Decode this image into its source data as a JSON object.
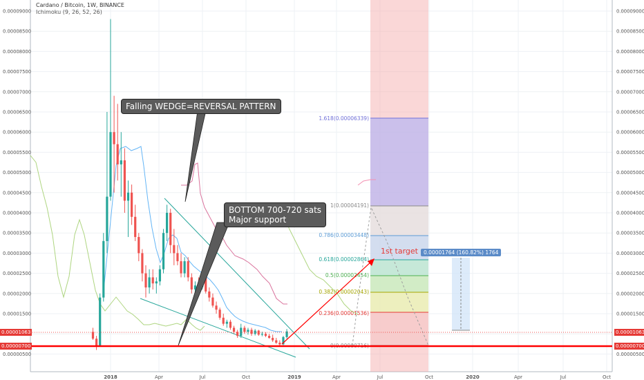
{
  "header": {
    "title": "Cardano / Bitcoin, 1W, BINANCE",
    "indicator": "Ichimoku (9, 26, 52, 26)"
  },
  "price_axis_labels": [
    "0.00009000",
    "0.00008500",
    "0.00008000",
    "0.00007500",
    "0.00007000",
    "0.00006500",
    "0.00006000",
    "0.00005500",
    "0.00005000",
    "0.00004500",
    "0.00004000",
    "0.00003500",
    "0.00003000",
    "0.00002500",
    "0.00002000",
    "0.00001500",
    "0.00001000",
    "0.00000500"
  ],
  "price_badges": {
    "current": "0.00001063",
    "support": "0.00000700"
  },
  "time_axis": [
    "2018",
    "Apr",
    "Jul",
    "Oct",
    "2019",
    "Apr",
    "Jul",
    "Oct",
    "2020",
    "Apr",
    "Jul",
    "Oct"
  ],
  "annotations": {
    "wedge": "Falling WEDGE=REVERSAL PATTERN",
    "bottom_line1": "BOTTOM 700-720 sats",
    "bottom_line2": "Major support",
    "target": "1st target",
    "position": "0.00001764 (160.82%) 1764"
  },
  "fib_levels": [
    {
      "label": "1.618(0.00006339)",
      "color": "#6f6fd8"
    },
    {
      "label": "1(0.00004191)",
      "color": "#888888"
    },
    {
      "label": "0.786(0.00003448)",
      "color": "#5b9bd5"
    },
    {
      "label": "0.618(0.00002864)",
      "color": "#26a69a"
    },
    {
      "label": "0.5(0.00002454)",
      "color": "#4caf50"
    },
    {
      "label": "0.382(0.00002043)",
      "color": "#a6a600"
    },
    {
      "label": "0.236(0.00001536)",
      "color": "#e53935"
    },
    {
      "label": "0(0.00000716)",
      "color": "#888888"
    }
  ],
  "colors": {
    "up": "#26a69a",
    "down": "#ef5350",
    "support": "#ff0000",
    "wedge": "#26a69a",
    "kijun": "#c2185b",
    "tenkan": "#64b5f6",
    "chikou": "#8bc34a"
  },
  "chart_data": {
    "type": "candlestick",
    "title": "Cardano / Bitcoin, 1W, BINANCE",
    "ylim": [
      3e-06,
      9.2e-05
    ],
    "support_level": 7e-06,
    "current_price": 1.063e-05,
    "candles": [
      {
        "x": "2017-11-27",
        "o": 1.05e-05,
        "h": 1.15e-05,
        "l": 8.5e-06,
        "c": 8.8e-06
      },
      {
        "x": "2017-12-04",
        "o": 8.8e-06,
        "h": 9.5e-06,
        "l": 6e-06,
        "c": 7e-06
      },
      {
        "x": "2017-12-11",
        "o": 7e-06,
        "h": 2e-05,
        "l": 6.8e-06,
        "c": 1.9e-05
      },
      {
        "x": "2017-12-18",
        "o": 1.9e-05,
        "h": 3.5e-05,
        "l": 1.8e-05,
        "c": 3.3e-05
      },
      {
        "x": "2017-12-25",
        "o": 3.3e-05,
        "h": 6.5e-05,
        "l": 3e-05,
        "c": 4.4e-05
      },
      {
        "x": "2018-01-01",
        "o": 4.4e-05,
        "h": 8.8e-05,
        "l": 4.3e-05,
        "c": 6e-05
      },
      {
        "x": "2018-01-08",
        "o": 6e-05,
        "h": 6.9e-05,
        "l": 4.5e-05,
        "c": 5.7e-05
      },
      {
        "x": "2018-01-15",
        "o": 5.7e-05,
        "h": 6.7e-05,
        "l": 4.8e-05,
        "c": 5.2e-05
      },
      {
        "x": "2018-01-22",
        "o": 5.2e-05,
        "h": 6e-05,
        "l": 4.4e-05,
        "c": 5.3e-05
      },
      {
        "x": "2018-01-29",
        "o": 5.3e-05,
        "h": 5.6e-05,
        "l": 4e-05,
        "c": 4.3e-05
      },
      {
        "x": "2018-02-05",
        "o": 4.3e-05,
        "h": 4.8e-05,
        "l": 3.4e-05,
        "c": 4.5e-05
      },
      {
        "x": "2018-02-12",
        "o": 4.5e-05,
        "h": 4.7e-05,
        "l": 3.7e-05,
        "c": 3.9e-05
      },
      {
        "x": "2018-02-19",
        "o": 3.9e-05,
        "h": 4.2e-05,
        "l": 3.3e-05,
        "c": 3.4e-05
      },
      {
        "x": "2018-02-26",
        "o": 3.4e-05,
        "h": 3.5e-05,
        "l": 2.8e-05,
        "c": 3e-05
      },
      {
        "x": "2018-03-05",
        "o": 3e-05,
        "h": 3.1e-05,
        "l": 2.3e-05,
        "c": 2.5e-05
      },
      {
        "x": "2018-03-12",
        "o": 2.5e-05,
        "h": 2.7e-05,
        "l": 1.9e-05,
        "c": 2.15e-05
      },
      {
        "x": "2018-03-19",
        "o": 2.15e-05,
        "h": 2.6e-05,
        "l": 2e-05,
        "c": 2.4e-05
      },
      {
        "x": "2018-03-26",
        "o": 2.4e-05,
        "h": 2.6e-05,
        "l": 2.1e-05,
        "c": 2.25e-05
      },
      {
        "x": "2018-04-02",
        "o": 2.25e-05,
        "h": 2.4e-05,
        "l": 2e-05,
        "c": 2.3e-05
      },
      {
        "x": "2018-04-09",
        "o": 2.3e-05,
        "h": 2.7e-05,
        "l": 2.2e-05,
        "c": 2.6e-05
      },
      {
        "x": "2018-04-16",
        "o": 2.6e-05,
        "h": 3.6e-05,
        "l": 2.5e-05,
        "c": 3.5e-05
      },
      {
        "x": "2018-04-23",
        "o": 3.5e-05,
        "h": 4.2e-05,
        "l": 3.3e-05,
        "c": 4e-05
      },
      {
        "x": "2018-04-30",
        "o": 4e-05,
        "h": 4.1e-05,
        "l": 3e-05,
        "c": 3.2e-05
      },
      {
        "x": "2018-05-07",
        "o": 3.2e-05,
        "h": 3.6e-05,
        "l": 2.7e-05,
        "c": 3e-05
      },
      {
        "x": "2018-05-14",
        "o": 3e-05,
        "h": 3.2e-05,
        "l": 2.7e-05,
        "c": 2.8e-05
      },
      {
        "x": "2018-05-21",
        "o": 2.8e-05,
        "h": 3e-05,
        "l": 2.4e-05,
        "c": 2.5e-05
      },
      {
        "x": "2018-05-28",
        "o": 2.5e-05,
        "h": 2.9e-05,
        "l": 2.4e-05,
        "c": 2.8e-05
      },
      {
        "x": "2018-06-04",
        "o": 2.8e-05,
        "h": 2.9e-05,
        "l": 2.3e-05,
        "c": 2.4e-05
      },
      {
        "x": "2018-06-11",
        "o": 2.4e-05,
        "h": 2.5e-05,
        "l": 2e-05,
        "c": 2.1e-05
      },
      {
        "x": "2018-06-18",
        "o": 2.1e-05,
        "h": 2.3e-05,
        "l": 1.95e-05,
        "c": 2.2e-05
      },
      {
        "x": "2018-06-25",
        "o": 2.2e-05,
        "h": 2.4e-05,
        "l": 2e-05,
        "c": 2.15e-05
      },
      {
        "x": "2018-07-02",
        "o": 2.15e-05,
        "h": 2.5e-05,
        "l": 2.1e-05,
        "c": 2.4e-05
      },
      {
        "x": "2018-07-09",
        "o": 2.4e-05,
        "h": 2.5e-05,
        "l": 2e-05,
        "c": 2.05e-05
      },
      {
        "x": "2018-07-16",
        "o": 2.05e-05,
        "h": 2.15e-05,
        "l": 1.8e-05,
        "c": 1.9e-05
      },
      {
        "x": "2018-07-23",
        "o": 1.9e-05,
        "h": 2e-05,
        "l": 1.65e-05,
        "c": 1.7e-05
      },
      {
        "x": "2018-07-30",
        "o": 1.7e-05,
        "h": 1.8e-05,
        "l": 1.5e-05,
        "c": 1.6e-05
      },
      {
        "x": "2018-08-06",
        "o": 1.6e-05,
        "h": 1.65e-05,
        "l": 1.35e-05,
        "c": 1.4e-05
      },
      {
        "x": "2018-08-13",
        "o": 1.4e-05,
        "h": 1.5e-05,
        "l": 1.2e-05,
        "c": 1.25e-05
      },
      {
        "x": "2018-08-20",
        "o": 1.25e-05,
        "h": 1.35e-05,
        "l": 1.15e-05,
        "c": 1.3e-05
      },
      {
        "x": "2018-08-27",
        "o": 1.3e-05,
        "h": 1.35e-05,
        "l": 1.1e-05,
        "c": 1.15e-05
      },
      {
        "x": "2018-09-03",
        "o": 1.15e-05,
        "h": 1.2e-05,
        "l": 1e-05,
        "c": 1.05e-05
      },
      {
        "x": "2018-09-10",
        "o": 1.05e-05,
        "h": 1.1e-05,
        "l": 9e-06,
        "c": 9.5e-06
      },
      {
        "x": "2018-09-17",
        "o": 9.5e-06,
        "h": 1.25e-05,
        "l": 9e-06,
        "c": 1.15e-05
      },
      {
        "x": "2018-09-24",
        "o": 1.15e-05,
        "h": 1.2e-05,
        "l": 1e-05,
        "c": 1.05e-05
      },
      {
        "x": "2018-10-01",
        "o": 1.05e-05,
        "h": 1.15e-05,
        "l": 9.8e-06,
        "c": 1.1e-05
      },
      {
        "x": "2018-10-08",
        "o": 1.1e-05,
        "h": 1.15e-05,
        "l": 9.5e-06,
        "c": 1e-05
      },
      {
        "x": "2018-10-15",
        "o": 1e-05,
        "h": 1.12e-05,
        "l": 9.6e-06,
        "c": 1.08e-05
      },
      {
        "x": "2018-10-22",
        "o": 1.08e-05,
        "h": 1.1e-05,
        "l": 9.5e-06,
        "c": 9.8e-06
      },
      {
        "x": "2018-10-29",
        "o": 9.8e-06,
        "h": 1.05e-05,
        "l": 9.4e-06,
        "c": 1e-05
      },
      {
        "x": "2018-11-05",
        "o": 1e-05,
        "h": 1.04e-05,
        "l": 9.2e-06,
        "c": 9.5e-06
      },
      {
        "x": "2018-11-12",
        "o": 9.5e-06,
        "h": 1e-05,
        "l": 8.8e-06,
        "c": 9e-06
      },
      {
        "x": "2018-11-19",
        "o": 9e-06,
        "h": 9.8e-06,
        "l": 8e-06,
        "c": 8.4e-06
      },
      {
        "x": "2018-11-26",
        "o": 8.4e-06,
        "h": 9e-06,
        "l": 7.5e-06,
        "c": 7.8e-06
      },
      {
        "x": "2018-12-03",
        "o": 7.8e-06,
        "h": 8.4e-06,
        "l": 7.1e-06,
        "c": 7.4e-06
      },
      {
        "x": "2018-12-10",
        "o": 7.4e-06,
        "h": 9.5e-06,
        "l": 7.2e-06,
        "c": 9.2e-06
      },
      {
        "x": "2018-12-17",
        "o": 9.2e-06,
        "h": 1.12e-05,
        "l": 8.8e-06,
        "c": 1.06e-05
      }
    ]
  }
}
